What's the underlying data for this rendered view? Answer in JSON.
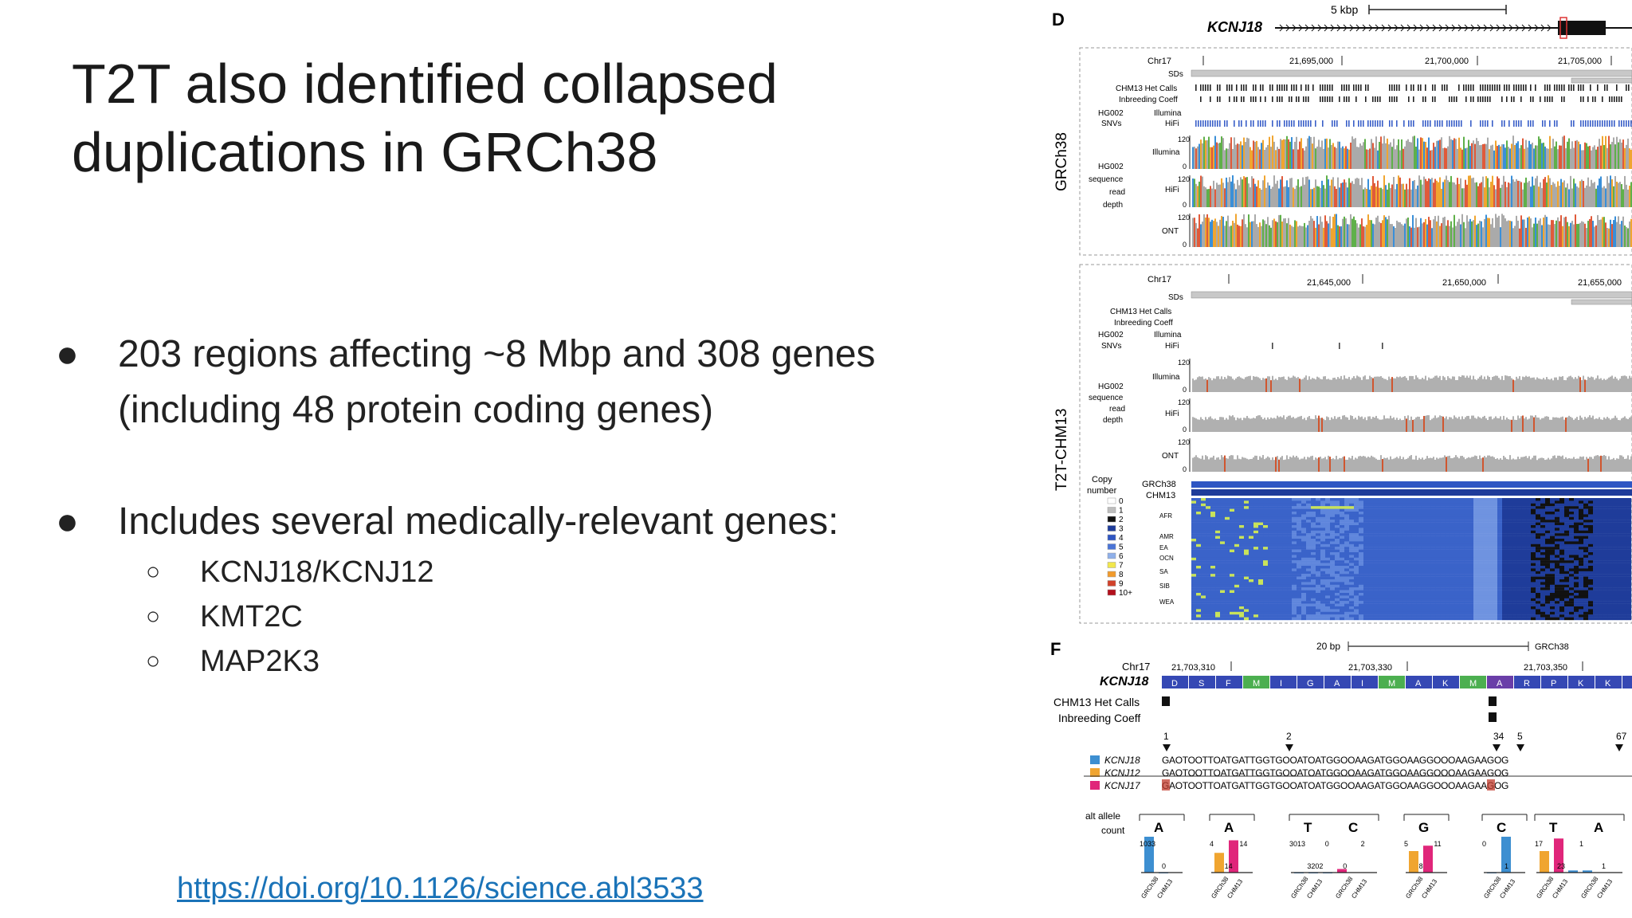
{
  "slide": {
    "title": "T2T also identified collapsed duplications in GRCh38",
    "bullets": [
      {
        "marker": "●",
        "text": "203 regions affecting ~8 Mbp and 308 genes (including 48 protein coding genes)"
      },
      {
        "marker": "●",
        "text": "Includes several medically-relevant genes:"
      }
    ],
    "subbullets": [
      {
        "marker": "○",
        "text": "KCNJ18/KCNJ12"
      },
      {
        "marker": "○",
        "text": "KMT2C"
      },
      {
        "marker": "○",
        "text": "MAP2K3"
      }
    ],
    "link": "https://doi.org/10.1126/science.abl3533"
  },
  "figure": {
    "panel_d": {
      "letter": "D",
      "scale": "5 kbp",
      "gene": "KCNJ18",
      "grch38_label": "GRCh38",
      "t2t_label": "T2T-CHM13",
      "chrom": "Chr17",
      "grch38_coords": [
        "21,695,000",
        "21,700,000",
        "21,705,000"
      ],
      "t2t_coords": [
        "21,645,000",
        "21,650,000",
        "21,655,000"
      ],
      "track_sds": "SDs",
      "track_het": "CHM13 Het Calls",
      "track_inbreed": "Inbreeding Coeff",
      "track_hg002": "HG002",
      "track_snvs": "SNVs",
      "track_illumina": "Illumina",
      "track_hifi": "HiFi",
      "track_ont": "ONT",
      "track_seq": "sequence",
      "track_read": "read",
      "track_depth": "depth",
      "depth_max": "120",
      "depth_min": "0",
      "cn_title1": "Copy",
      "cn_title2": "number",
      "cn_ref1": "GRCh38",
      "cn_ref2": "CHM13",
      "cn_levels": [
        "0",
        "1",
        "2",
        "3",
        "4",
        "5",
        "6",
        "7",
        "8",
        "9",
        "10+"
      ],
      "cn_colors": [
        "#ffffff",
        "#bdbdbd",
        "#111111",
        "#1f3c9a",
        "#2f56c3",
        "#4a74d6",
        "#8fb0ea",
        "#f2e74c",
        "#f29b2c",
        "#d1412a",
        "#b3101c"
      ],
      "populations": [
        "AFR",
        "AMR",
        "EA",
        "OCN",
        "SA",
        "SIB",
        "WEA"
      ]
    },
    "panel_f": {
      "letter": "F",
      "scale": "20 bp",
      "ref": "GRCh38",
      "chrom": "Chr17",
      "coords": [
        "21,703,310",
        "21,703,330",
        "21,703,350"
      ],
      "gene": "KCNJ18",
      "aa": [
        "D",
        "S",
        "F",
        "M",
        "I",
        "G",
        "A",
        "I",
        "M",
        "A",
        "K",
        "M",
        "A",
        "R",
        "P",
        "K",
        "K",
        "R"
      ],
      "het_label": "CHM13 Het Calls",
      "inbreed_label": "Inbreeding Coeff",
      "site_numbers": [
        "1",
        "2",
        "34",
        "5",
        "67"
      ],
      "genes": [
        "KCNJ18",
        "KCNJ12",
        "KCNJ17"
      ],
      "gene_colors": [
        "#3d8fd1",
        "#f0a530",
        "#e0267a"
      ],
      "seq": "GAOTOOTTOATGATTGGTGOOATOATGGOOAAGATGGOAAGGOOOAAGAAGOG",
      "alt_label1": "alt allele",
      "alt_label2": "count",
      "alleles": [
        "A",
        "A",
        "T",
        "C",
        "G",
        "C",
        "T",
        "A"
      ],
      "count_values": [
        "1033",
        "0",
        "4",
        "14",
        "14",
        "3013",
        "3202",
        "0",
        "0",
        "2",
        "5",
        "8",
        "11",
        "0",
        "1",
        "17",
        "23",
        "1",
        "1"
      ],
      "axis_labels": [
        "GRCh38",
        "CHM13"
      ]
    }
  }
}
